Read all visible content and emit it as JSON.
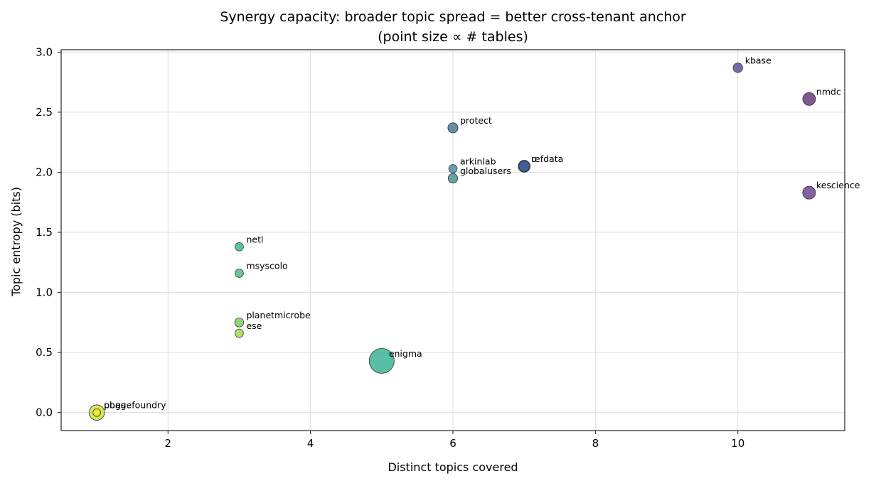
{
  "chart_data": {
    "type": "scatter",
    "title": "Synergy capacity: broader topic spread = better cross-tenant anchor",
    "subtitle": "(point size ∝ # tables)",
    "xlabel": "Distinct topics covered",
    "ylabel": "Topic entropy (bits)",
    "xlim": [
      0.5,
      11.5
    ],
    "ylim": [
      -0.15,
      3.02
    ],
    "xticks": [
      2,
      4,
      6,
      8,
      10
    ],
    "yticks": [
      0.0,
      0.5,
      1.0,
      1.5,
      2.0,
      2.5,
      3.0
    ],
    "xtick_labels": [
      "2",
      "4",
      "6",
      "8",
      "10"
    ],
    "ytick_labels": [
      "0.0",
      "0.5",
      "1.0",
      "1.5",
      "2.0",
      "2.5",
      "3.0"
    ],
    "grid": true,
    "points": [
      {
        "label": "kbase",
        "x": 10,
        "y": 2.87,
        "tables": 8,
        "color": "#5c5598"
      },
      {
        "label": "nmdc",
        "x": 11,
        "y": 2.61,
        "tables": 15,
        "color": "#6b3a7e"
      },
      {
        "label": "protect",
        "x": 6,
        "y": 2.37,
        "tables": 9,
        "color": "#4a7d9b"
      },
      {
        "label": "arkinlab",
        "x": 6,
        "y": 2.03,
        "tables": 6,
        "color": "#4e8da0"
      },
      {
        "label": "u",
        "x": 7,
        "y": 2.05,
        "tables": 13,
        "color": "#2f5d8e"
      },
      {
        "label": "refdata",
        "x": 7,
        "y": 2.05,
        "tables": 10,
        "color": "#3d5e95"
      },
      {
        "label": "globalusers",
        "x": 6,
        "y": 1.95,
        "tables": 8,
        "color": "#44979a"
      },
      {
        "label": "kescience",
        "x": 11,
        "y": 1.83,
        "tables": 15,
        "color": "#6f4592"
      },
      {
        "label": "netl",
        "x": 3,
        "y": 1.38,
        "tables": 6,
        "color": "#3fbc88"
      },
      {
        "label": "msyscolo",
        "x": 3,
        "y": 1.16,
        "tables": 6,
        "color": "#4fc17e"
      },
      {
        "label": "planetmicrobe",
        "x": 3,
        "y": 0.75,
        "tables": 7,
        "color": "#7fd067"
      },
      {
        "label": "ese",
        "x": 3,
        "y": 0.66,
        "tables": 6,
        "color": "#a6d84f"
      },
      {
        "label": "enigma",
        "x": 5,
        "y": 0.43,
        "tables": 60,
        "color": "#3db196"
      },
      {
        "label": "pbgs",
        "x": 1,
        "y": 0.0,
        "tables": 22,
        "color": "#d2e141"
      },
      {
        "label": "phagefoundry",
        "x": 1,
        "y": 0.0,
        "tables": 5,
        "color": "#f0e82a"
      }
    ]
  }
}
